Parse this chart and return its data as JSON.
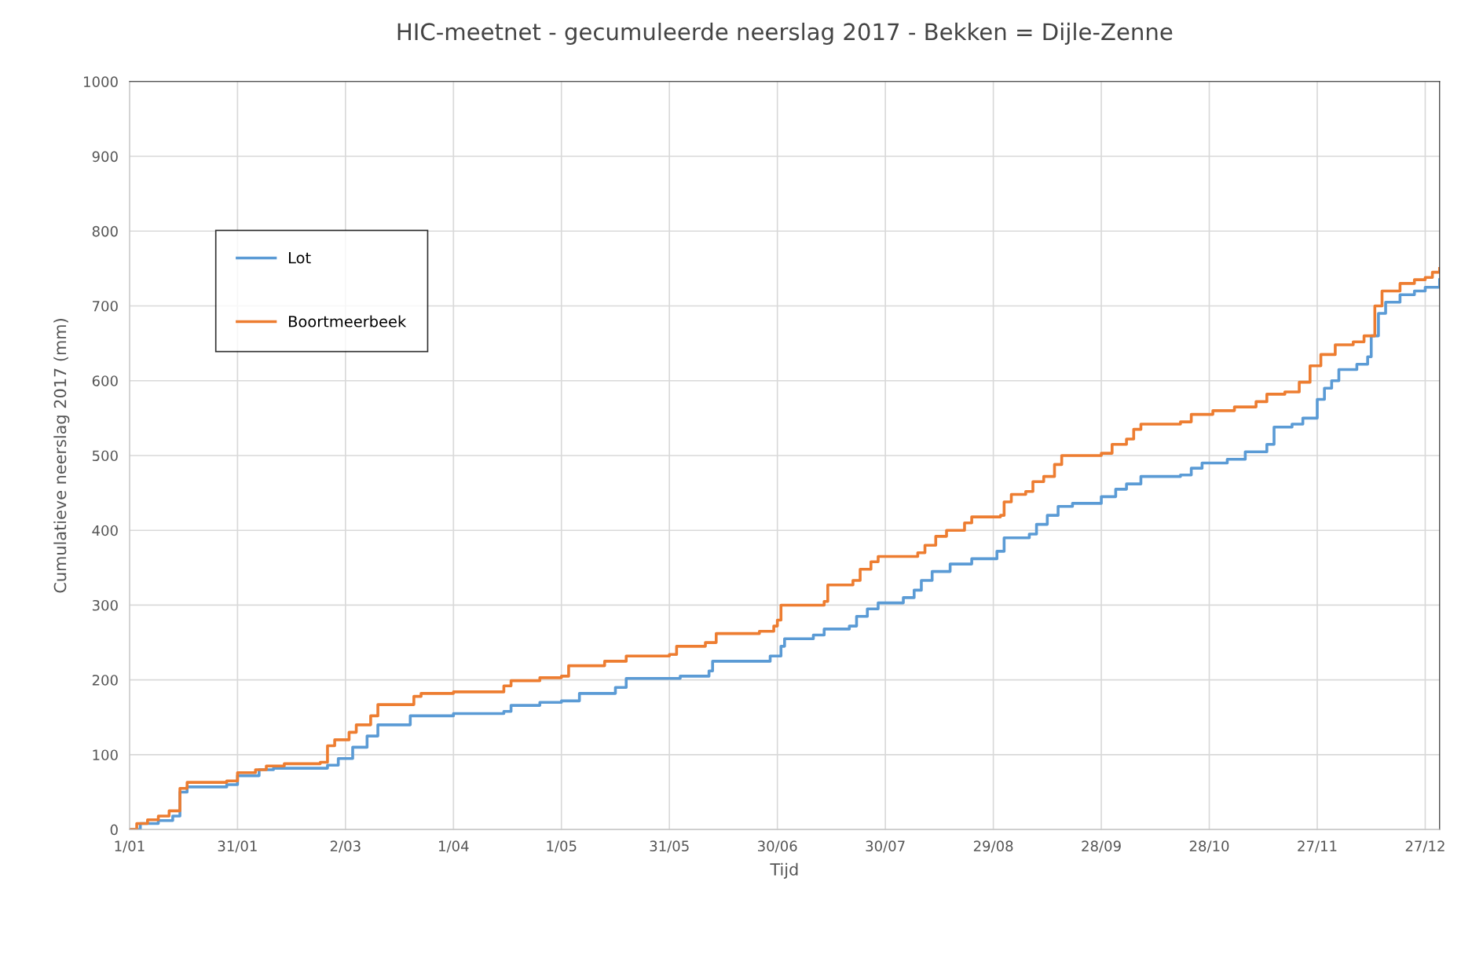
{
  "chart_data": {
    "type": "step",
    "title": "HIC-meetnet - gecumuleerde neerslag 2017 - Bekken = Dijle-Zenne",
    "xlabel": "Tijd",
    "ylabel": "Cumulatieve neerslag 2017 (mm)",
    "xlim": [
      "2017-01-01",
      "2017-12-31"
    ],
    "xticks": [
      {
        "value": "2017-01-01",
        "label": "1/01"
      },
      {
        "value": "2017-01-31",
        "label": "31/01"
      },
      {
        "value": "2017-03-02",
        "label": "2/03"
      },
      {
        "value": "2017-04-01",
        "label": "1/04"
      },
      {
        "value": "2017-05-01",
        "label": "1/05"
      },
      {
        "value": "2017-05-31",
        "label": "31/05"
      },
      {
        "value": "2017-06-30",
        "label": "30/06"
      },
      {
        "value": "2017-07-30",
        "label": "30/07"
      },
      {
        "value": "2017-08-29",
        "label": "29/08"
      },
      {
        "value": "2017-09-28",
        "label": "28/09"
      },
      {
        "value": "2017-10-28",
        "label": "28/10"
      },
      {
        "value": "2017-11-27",
        "label": "27/11"
      },
      {
        "value": "2017-12-27",
        "label": "27/12"
      }
    ],
    "ylim": [
      0,
      1000
    ],
    "yticks": [
      0,
      100,
      200,
      300,
      400,
      500,
      600,
      700,
      800,
      900,
      1000
    ],
    "grid": true,
    "legend": "left",
    "line_style": "solid",
    "series": [
      {
        "name": "Lot",
        "color": "#5b9bd5",
        "x": [
          "2017-01-01",
          "2017-01-04",
          "2017-01-09",
          "2017-01-13",
          "2017-01-15",
          "2017-01-17",
          "2017-01-28",
          "2017-01-31",
          "2017-02-06",
          "2017-02-10",
          "2017-02-25",
          "2017-02-28",
          "2017-03-04",
          "2017-03-08",
          "2017-03-11",
          "2017-03-20",
          "2017-04-01",
          "2017-04-15",
          "2017-04-17",
          "2017-04-25",
          "2017-05-01",
          "2017-05-06",
          "2017-05-16",
          "2017-05-19",
          "2017-06-03",
          "2017-06-11",
          "2017-06-12",
          "2017-06-28",
          "2017-07-01",
          "2017-07-02",
          "2017-07-10",
          "2017-07-13",
          "2017-07-20",
          "2017-07-22",
          "2017-07-25",
          "2017-07-28",
          "2017-08-04",
          "2017-08-07",
          "2017-08-09",
          "2017-08-12",
          "2017-08-17",
          "2017-08-23",
          "2017-08-30",
          "2017-09-01",
          "2017-09-08",
          "2017-09-10",
          "2017-09-13",
          "2017-09-16",
          "2017-09-20",
          "2017-09-28",
          "2017-10-02",
          "2017-10-05",
          "2017-10-09",
          "2017-10-20",
          "2017-10-23",
          "2017-10-26",
          "2017-11-02",
          "2017-11-07",
          "2017-11-13",
          "2017-11-15",
          "2017-11-20",
          "2017-11-23",
          "2017-11-27",
          "2017-11-29",
          "2017-12-01",
          "2017-12-03",
          "2017-12-08",
          "2017-12-11",
          "2017-12-12",
          "2017-12-14",
          "2017-12-16",
          "2017-12-20",
          "2017-12-24",
          "2017-12-27",
          "2017-12-31"
        ],
        "values": [
          0,
          8,
          12,
          18,
          50,
          57,
          60,
          72,
          80,
          82,
          86,
          95,
          110,
          125,
          140,
          152,
          155,
          158,
          166,
          170,
          172,
          182,
          190,
          202,
          205,
          212,
          225,
          232,
          245,
          255,
          260,
          268,
          272,
          285,
          295,
          303,
          310,
          320,
          333,
          345,
          355,
          362,
          372,
          390,
          395,
          408,
          420,
          432,
          436,
          445,
          455,
          462,
          472,
          474,
          483,
          490,
          495,
          505,
          515,
          538,
          542,
          550,
          575,
          590,
          600,
          615,
          622,
          632,
          660,
          690,
          705,
          715,
          720,
          725,
          735
        ]
      },
      {
        "name": "Boortmeerbeek",
        "color": "#ed7d31",
        "x": [
          "2017-01-01",
          "2017-01-03",
          "2017-01-06",
          "2017-01-09",
          "2017-01-12",
          "2017-01-15",
          "2017-01-17",
          "2017-01-28",
          "2017-01-31",
          "2017-02-05",
          "2017-02-08",
          "2017-02-13",
          "2017-02-23",
          "2017-02-25",
          "2017-02-27",
          "2017-03-03",
          "2017-03-05",
          "2017-03-09",
          "2017-03-11",
          "2017-03-21",
          "2017-03-23",
          "2017-04-01",
          "2017-04-15",
          "2017-04-17",
          "2017-04-25",
          "2017-05-01",
          "2017-05-03",
          "2017-05-13",
          "2017-05-19",
          "2017-05-31",
          "2017-06-02",
          "2017-06-10",
          "2017-06-13",
          "2017-06-25",
          "2017-06-29",
          "2017-06-30",
          "2017-07-01",
          "2017-07-13",
          "2017-07-14",
          "2017-07-21",
          "2017-07-23",
          "2017-07-26",
          "2017-07-28",
          "2017-08-08",
          "2017-08-10",
          "2017-08-13",
          "2017-08-16",
          "2017-08-21",
          "2017-08-23",
          "2017-08-31",
          "2017-09-01",
          "2017-09-03",
          "2017-09-07",
          "2017-09-09",
          "2017-09-12",
          "2017-09-15",
          "2017-09-17",
          "2017-09-28",
          "2017-10-01",
          "2017-10-05",
          "2017-10-07",
          "2017-10-09",
          "2017-10-20",
          "2017-10-23",
          "2017-10-29",
          "2017-11-04",
          "2017-11-10",
          "2017-11-13",
          "2017-11-18",
          "2017-11-22",
          "2017-11-25",
          "2017-11-28",
          "2017-12-02",
          "2017-12-07",
          "2017-12-10",
          "2017-12-13",
          "2017-12-15",
          "2017-12-20",
          "2017-12-24",
          "2017-12-27",
          "2017-12-29",
          "2017-12-31"
        ],
        "values": [
          0,
          8,
          13,
          18,
          25,
          55,
          63,
          65,
          76,
          80,
          85,
          88,
          90,
          112,
          120,
          130,
          140,
          152,
          167,
          178,
          182,
          184,
          192,
          199,
          203,
          205,
          219,
          225,
          232,
          234,
          245,
          250,
          262,
          265,
          272,
          280,
          300,
          305,
          327,
          333,
          348,
          358,
          365,
          370,
          380,
          392,
          400,
          410,
          418,
          420,
          438,
          448,
          452,
          465,
          472,
          488,
          500,
          503,
          515,
          522,
          535,
          542,
          545,
          555,
          560,
          565,
          572,
          582,
          585,
          598,
          620,
          635,
          648,
          652,
          660,
          700,
          720,
          730,
          735,
          738,
          745,
          750
        ]
      }
    ]
  }
}
